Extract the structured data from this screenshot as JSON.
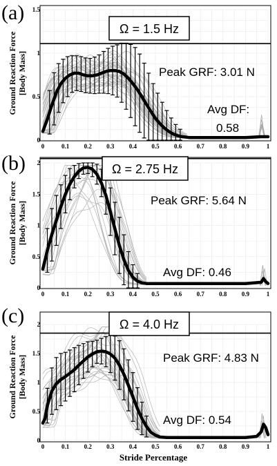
{
  "figure": {
    "xlabel": "Stride Percentage",
    "ylabel_line1": "Ground Reaction Force",
    "ylabel_line2": "[Body Mass]"
  },
  "chart_data": [
    {
      "type": "line",
      "panel": "(a)",
      "frequency_label": "Ω = 1.5 Hz",
      "peak_label": "Peak GRF: 3.01 N",
      "df_label_line1": "Avg DF:",
      "df_label_line2": "0.58",
      "peak_line": 1.11,
      "xlim": [
        0,
        1
      ],
      "ylim": [
        0,
        1.5
      ],
      "x_ticks": [
        "0",
        "0.1",
        "0.2",
        "0.3",
        "0.4",
        "0.5",
        "0.6",
        "0.7",
        "0.8",
        "0.9",
        "1"
      ],
      "y_ticks": [
        "0",
        "0.5",
        "1",
        "1.5"
      ],
      "mean": {
        "x": [
          0,
          0.02,
          0.04,
          0.06,
          0.08,
          0.1,
          0.12,
          0.14,
          0.16,
          0.18,
          0.2,
          0.22,
          0.24,
          0.26,
          0.28,
          0.3,
          0.32,
          0.34,
          0.36,
          0.38,
          0.4,
          0.42,
          0.44,
          0.46,
          0.48,
          0.5,
          0.52,
          0.54,
          0.56,
          0.58,
          0.6,
          0.62,
          0.65,
          0.7,
          0.8,
          0.9,
          0.97,
          1.0
        ],
        "y": [
          0.1,
          0.24,
          0.4,
          0.55,
          0.65,
          0.71,
          0.75,
          0.77,
          0.77,
          0.75,
          0.74,
          0.74,
          0.75,
          0.77,
          0.79,
          0.8,
          0.8,
          0.79,
          0.76,
          0.71,
          0.65,
          0.58,
          0.5,
          0.41,
          0.33,
          0.25,
          0.19,
          0.14,
          0.1,
          0.07,
          0.05,
          0.04,
          0.03,
          0.03,
          0.03,
          0.03,
          0.04,
          0.04
        ]
      },
      "error_bars": {
        "x": [
          0.03,
          0.05,
          0.07,
          0.09,
          0.11,
          0.13,
          0.15,
          0.17,
          0.19,
          0.21,
          0.23,
          0.25,
          0.27,
          0.29,
          0.31,
          0.33,
          0.35,
          0.37,
          0.39,
          0.41,
          0.43,
          0.45,
          0.47,
          0.49,
          0.51,
          0.53,
          0.55,
          0.57,
          0.59,
          0.61
        ],
        "sd": [
          0.25,
          0.3,
          0.28,
          0.25,
          0.23,
          0.21,
          0.2,
          0.2,
          0.2,
          0.2,
          0.21,
          0.22,
          0.24,
          0.26,
          0.28,
          0.3,
          0.34,
          0.38,
          0.42,
          0.45,
          0.45,
          0.43,
          0.4,
          0.36,
          0.32,
          0.27,
          0.22,
          0.17,
          0.12,
          0.08
        ]
      },
      "trials": 40,
      "trial_spread": 0.22,
      "trial_end": 0.64,
      "spike_x": 0.975,
      "spike_y": 0.3
    },
    {
      "type": "line",
      "panel": "(b)",
      "frequency_label": "Ω = 2.75 Hz",
      "peak_label": "Peak GRF: 5.64 N",
      "df_label_line1": "Avg DF: 0.46",
      "df_label_line2": "",
      "peak_line": 2.07,
      "xlim": [
        0,
        1
      ],
      "ylim": [
        0,
        2
      ],
      "x_ticks": [
        "0",
        "0.1",
        "0.2",
        "0.3",
        "0.4",
        "0.5",
        "0.6",
        "0.7",
        "0.8",
        "0.9",
        "1"
      ],
      "y_ticks": [
        "0",
        "0.5",
        "1",
        "1.5",
        "2"
      ],
      "mean": {
        "x": [
          0,
          0.02,
          0.04,
          0.06,
          0.08,
          0.1,
          0.12,
          0.14,
          0.16,
          0.18,
          0.2,
          0.22,
          0.24,
          0.26,
          0.28,
          0.3,
          0.32,
          0.34,
          0.36,
          0.38,
          0.4,
          0.42,
          0.44,
          0.46,
          0.5,
          0.6,
          0.7,
          0.8,
          0.9,
          0.97,
          0.98,
          0.99,
          1.0
        ],
        "y": [
          0.3,
          0.6,
          0.85,
          1.08,
          1.3,
          1.5,
          1.66,
          1.78,
          1.87,
          1.92,
          1.93,
          1.9,
          1.82,
          1.68,
          1.48,
          1.22,
          0.95,
          0.68,
          0.45,
          0.28,
          0.17,
          0.11,
          0.08,
          0.07,
          0.07,
          0.07,
          0.07,
          0.07,
          0.07,
          0.09,
          0.15,
          0.1,
          0.07
        ]
      },
      "error_bars": {
        "x": [
          0.02,
          0.04,
          0.06,
          0.08,
          0.1,
          0.12,
          0.14,
          0.16,
          0.18,
          0.2,
          0.22,
          0.24,
          0.26,
          0.28,
          0.3,
          0.32,
          0.34,
          0.36,
          0.38,
          0.4,
          0.42
        ],
        "sd": [
          0.35,
          0.42,
          0.4,
          0.35,
          0.3,
          0.25,
          0.18,
          0.12,
          0.1,
          0.1,
          0.12,
          0.16,
          0.22,
          0.3,
          0.38,
          0.42,
          0.45,
          0.4,
          0.3,
          0.2,
          0.12
        ]
      },
      "trials": 20,
      "trial_spread": 0.3,
      "trial_end": 0.46,
      "spike_x": 0.98,
      "spike_y": 0.4
    },
    {
      "type": "line",
      "panel": "(c)",
      "frequency_label": "Ω = 4.0 Hz",
      "peak_label": "Peak GRF: 4.83 N",
      "df_label_line1": "Avg DF: 0.54",
      "df_label_line2": "",
      "peak_line": 1.85,
      "xlim": [
        0,
        1
      ],
      "ylim": [
        0,
        2
      ],
      "x_ticks": [
        "0",
        "0.1",
        "0.2",
        "0.3",
        "0.4",
        "0.5",
        "0.6",
        "0.7",
        "0.8",
        "0.9",
        "1"
      ],
      "y_ticks": [
        "0",
        "0.5",
        "1",
        "1.5",
        "2"
      ],
      "mean": {
        "x": [
          0,
          0.01,
          0.02,
          0.04,
          0.06,
          0.08,
          0.1,
          0.12,
          0.14,
          0.16,
          0.18,
          0.2,
          0.22,
          0.24,
          0.26,
          0.28,
          0.3,
          0.32,
          0.34,
          0.36,
          0.38,
          0.4,
          0.42,
          0.44,
          0.46,
          0.48,
          0.5,
          0.52,
          0.55,
          0.6,
          0.7,
          0.8,
          0.9,
          0.95,
          0.97,
          0.98,
          0.99,
          1.0
        ],
        "y": [
          0.3,
          0.38,
          0.6,
          0.85,
          0.98,
          1.05,
          1.1,
          1.16,
          1.22,
          1.3,
          1.37,
          1.44,
          1.49,
          1.53,
          1.54,
          1.53,
          1.49,
          1.42,
          1.3,
          1.14,
          0.95,
          0.75,
          0.55,
          0.38,
          0.24,
          0.14,
          0.09,
          0.06,
          0.05,
          0.05,
          0.05,
          0.05,
          0.05,
          0.07,
          0.15,
          0.28,
          0.22,
          0.1
        ]
      },
      "error_bars": {
        "x": [
          0.02,
          0.04,
          0.06,
          0.08,
          0.1,
          0.12,
          0.14,
          0.16,
          0.18,
          0.2,
          0.22,
          0.24,
          0.26,
          0.28,
          0.3,
          0.32,
          0.34,
          0.36,
          0.38,
          0.4,
          0.42,
          0.44,
          0.46
        ],
        "sd": [
          0.3,
          0.4,
          0.45,
          0.45,
          0.42,
          0.4,
          0.38,
          0.34,
          0.3,
          0.26,
          0.22,
          0.2,
          0.22,
          0.26,
          0.32,
          0.38,
          0.42,
          0.44,
          0.44,
          0.42,
          0.36,
          0.28,
          0.18
        ]
      },
      "trials": 30,
      "trial_spread": 0.3,
      "trial_end": 0.52,
      "spike_x": 0.975,
      "spike_y": 0.45
    }
  ]
}
